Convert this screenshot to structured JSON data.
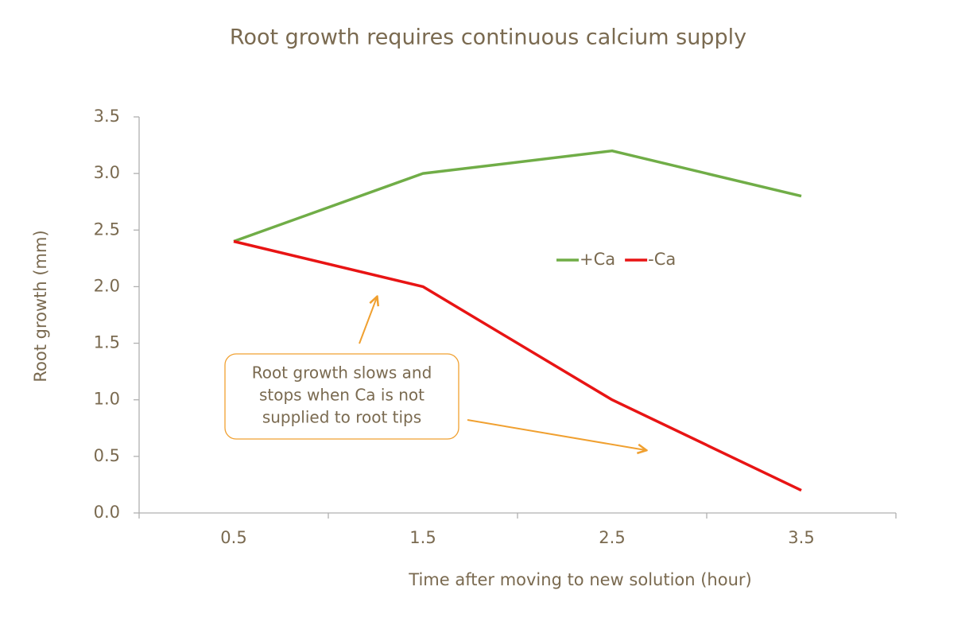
{
  "chart_data": {
    "type": "line",
    "title": "Root growth requires continuous calcium supply",
    "x_label": "Time after moving to new solution (hour)",
    "y_label": "Root growth (mm)",
    "categories": [
      "0.5",
      "1.5",
      "2.5",
      "3.5"
    ],
    "series": [
      {
        "name": "+Ca",
        "color": "#70ad47",
        "values": [
          2.4,
          3.0,
          3.2,
          2.8
        ]
      },
      {
        "name": "-Ca",
        "color": "#e81414",
        "values": [
          2.4,
          2.0,
          1.0,
          0.2
        ]
      }
    ],
    "ylim": [
      0,
      3.5
    ],
    "yticks": [
      {
        "value": 0,
        "label": "0.0"
      },
      0.5,
      {
        "value": 1,
        "label": "1.0"
      },
      1.5,
      {
        "value": 2,
        "label": "2.0"
      },
      2.5,
      {
        "value": 3,
        "label": "3.0"
      },
      3.5
    ],
    "grid": false,
    "annotation": [
      "Root growth slows and",
      "stops when Ca is not",
      "supplied to root tips"
    ]
  }
}
